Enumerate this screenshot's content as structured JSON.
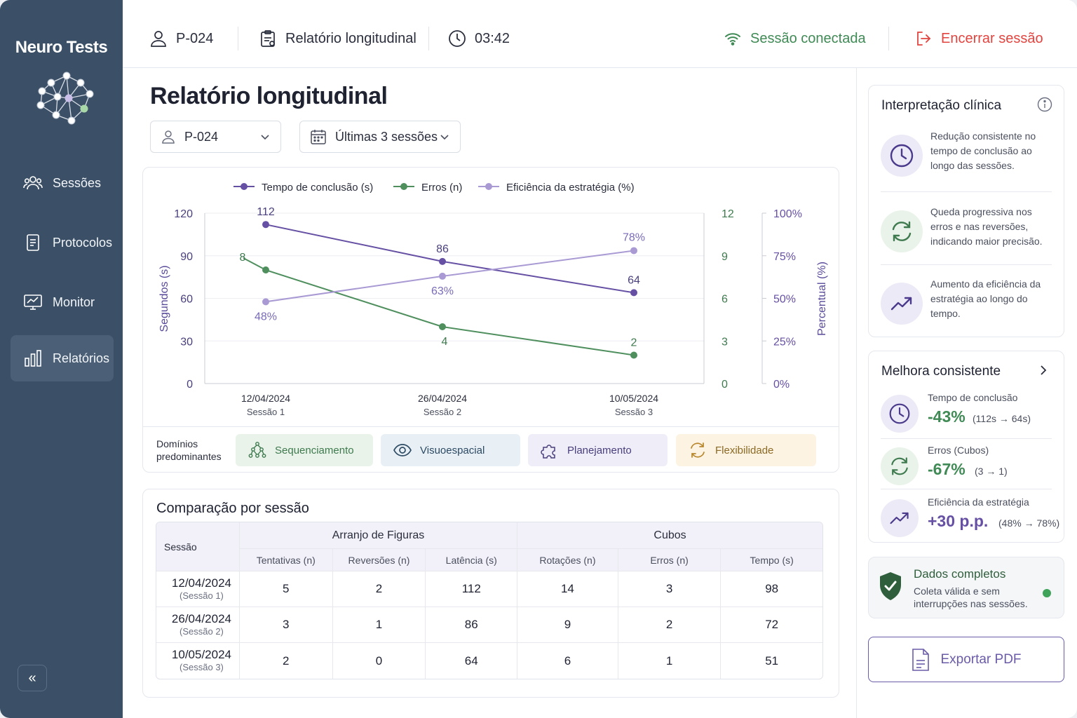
{
  "brand": {
    "name": "Neuro Tests"
  },
  "sidebar": {
    "items": [
      {
        "label": "Sessões",
        "icon": "users-icon"
      },
      {
        "label": "Protocolos",
        "icon": "document-icon"
      },
      {
        "label": "Monitor",
        "icon": "monitor-icon"
      },
      {
        "label": "Relatórios",
        "icon": "bar-chart-icon",
        "active": true
      }
    ],
    "collapse_glyph": "«"
  },
  "topbar": {
    "patient": "P-024",
    "report": "Relatório longitudinal",
    "timer": "03:42",
    "connection": "Sessão conectada",
    "end_session": "Encerrar sessão"
  },
  "page": {
    "title": "Relatório longitudinal"
  },
  "filters": {
    "patient": "P-024",
    "range": "Últimas 3 sessões"
  },
  "chart_data": {
    "type": "line",
    "x": [
      "12/04/2024",
      "26/04/2024",
      "10/05/2024"
    ],
    "x_sub": [
      "Sessão 1",
      "Sessão 2",
      "Sessão 3"
    ],
    "series": [
      {
        "name": "Tempo de conclusão (s)",
        "axis": "left",
        "color": "#6650a4",
        "values": [
          112,
          86,
          64
        ],
        "labels": [
          "112",
          "86",
          "64"
        ]
      },
      {
        "name": "Erros (n)",
        "axis": "right1",
        "color": "#4f8f5e",
        "values": [
          8,
          4,
          2
        ],
        "labels": [
          "8",
          "4",
          "2"
        ]
      },
      {
        "name": "Eficiência da estratégia (%)",
        "axis": "right2",
        "color": "#a99ad4",
        "values": [
          48,
          63,
          78
        ],
        "labels": [
          "48%",
          "63%",
          "78%"
        ]
      }
    ],
    "y_left": {
      "label": "Segundos (s)",
      "range": [
        0,
        120
      ],
      "ticks": [
        "0",
        "30",
        "60",
        "90",
        "120"
      ]
    },
    "y_right1": {
      "range": [
        0,
        12
      ],
      "ticks": [
        "0",
        "3",
        "6",
        "9",
        "12"
      ]
    },
    "y_right2": {
      "label": "Percentual (%)",
      "range": [
        0,
        100
      ],
      "ticks": [
        "0%",
        "25%",
        "50%",
        "75%",
        "100%"
      ]
    },
    "grid": true,
    "legend": "top"
  },
  "domains": {
    "label_line1": "Domínios",
    "label_line2": "predominantes",
    "chips": [
      {
        "label": "Sequenciamento",
        "icon": "sequence-icon",
        "bg": "#eaf3ea",
        "color": "#3e7a4e"
      },
      {
        "label": "Visuoespacial",
        "icon": "eye-icon",
        "bg": "#e8f0f6",
        "color": "#2d4a63"
      },
      {
        "label": "Planejamento",
        "icon": "puzzle-icon",
        "bg": "#efedf7",
        "color": "#4a3f7c"
      },
      {
        "label": "Flexibilidade",
        "icon": "swap-icon",
        "bg": "#fdf3e3",
        "color": "#8a6a24"
      }
    ]
  },
  "comparison": {
    "title": "Comparação por sessão",
    "session_header": "Sessão",
    "groups": [
      "Arranjo de Figuras",
      "Cubos"
    ],
    "columns": [
      "Tentativas (n)",
      "Reversões (n)",
      "Latência (s)",
      "Rotações (n)",
      "Erros (n)",
      "Tempo (s)"
    ],
    "rows": [
      {
        "date": "12/04/2024",
        "session": "(Sessão 1)",
        "values": [
          "5",
          "2",
          "112",
          "14",
          "3",
          "98"
        ]
      },
      {
        "date": "26/04/2024",
        "session": "(Sessão 2)",
        "values": [
          "3",
          "1",
          "86",
          "9",
          "2",
          "72"
        ]
      },
      {
        "date": "10/05/2024",
        "session": "(Sessão 3)",
        "values": [
          "2",
          "0",
          "64",
          "6",
          "1",
          "51"
        ]
      }
    ]
  },
  "interpretation": {
    "title": "Interpretação clínica",
    "items": [
      {
        "text": "Redução consistente no tempo de conclusão ao longo das sessões.",
        "icon": "clock-icon"
      },
      {
        "text": "Queda progressiva nos erros e nas reversões, indicando maior precisão.",
        "icon": "refresh-icon"
      },
      {
        "text": "Aumento da eficiência da estratégia ao longo do tempo.",
        "icon": "trend-up-icon"
      }
    ]
  },
  "improvement": {
    "title": "Melhora consistente",
    "items": [
      {
        "label": "Tempo de conclusão",
        "value": "-43%",
        "detail": "(112s → 64s)",
        "color": "#3f8a55"
      },
      {
        "label": "Erros (Cubos)",
        "value": "-67%",
        "detail": "(3 → 1)",
        "color": "#3f8a55"
      },
      {
        "label": "Eficiência da estratégia",
        "value": "+30 p.p.",
        "detail": "(48% → 78%)",
        "color": "#6650a4"
      }
    ]
  },
  "data_status": {
    "title": "Dados completos",
    "line1": "Coleta válida e sem",
    "line2": "interrupções nas sessões.",
    "status_color": "#3fa35a"
  },
  "export": {
    "label": "Exportar PDF"
  }
}
